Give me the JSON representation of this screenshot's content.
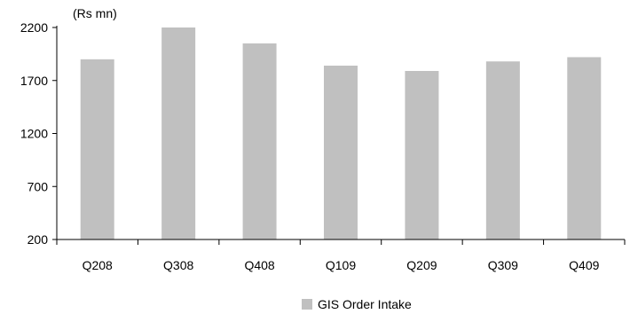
{
  "chart_data": {
    "type": "bar",
    "unit_label": "(Rs mn)",
    "categories": [
      "Q208",
      "Q308",
      "Q408",
      "Q109",
      "Q209",
      "Q309",
      "Q409"
    ],
    "series": [
      {
        "name": "GIS Order Intake",
        "color": "#c0c0c0",
        "values": [
          1900,
          2200,
          2050,
          1840,
          1790,
          1880,
          1920
        ]
      }
    ],
    "ylim": [
      200,
      2200
    ],
    "yticks": [
      "200",
      "700",
      "1200",
      "1700",
      "2200"
    ],
    "grid": false,
    "legend_position": "bottom-center"
  }
}
